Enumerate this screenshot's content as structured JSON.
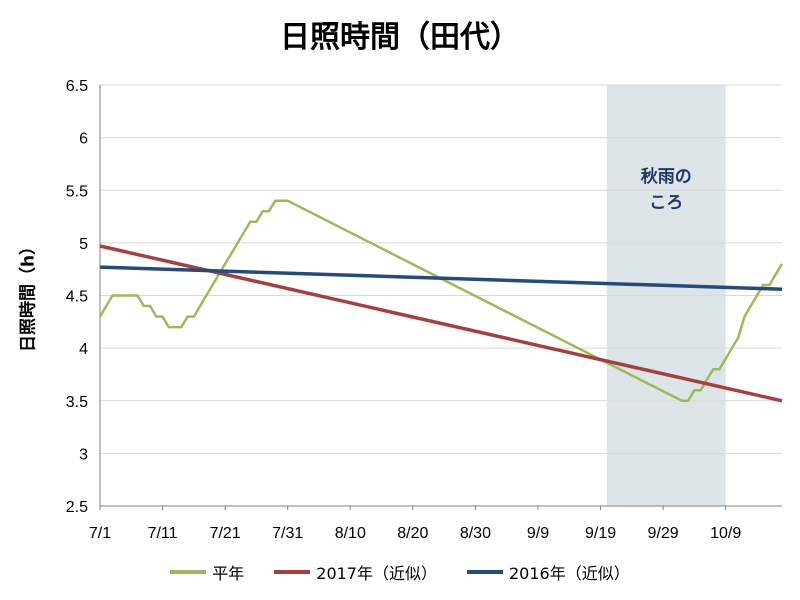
{
  "chart_data": {
    "type": "line",
    "title": "日照時間（田代）",
    "ylabel": "日照時間（h）",
    "xlabel": "",
    "x_start": "7/1",
    "x_end": "10/18",
    "ylim": [
      2.5,
      6.5
    ],
    "yticks": [
      "2.5",
      "3",
      "3.5",
      "4",
      "4.5",
      "5",
      "5.5",
      "6",
      "6.5"
    ],
    "xticks": [
      "7/1",
      "7/11",
      "7/21",
      "7/31",
      "8/10",
      "8/20",
      "8/30",
      "9/9",
      "9/19",
      "9/29",
      "10/9"
    ],
    "grid": "horizontal",
    "legend_position": "bottom",
    "annotation": {
      "label_lines": [
        "秋雨の",
        "ころ"
      ],
      "x_from": "9/20",
      "x_to": "10/9",
      "color": "#dde5e8"
    },
    "series": [
      {
        "name": "平年",
        "color": "#9BBB59",
        "points": [
          [
            "7/1",
            4.3
          ],
          [
            "7/2",
            4.4
          ],
          [
            "7/3",
            4.5
          ],
          [
            "7/4",
            4.5
          ],
          [
            "7/5",
            4.5
          ],
          [
            "7/6",
            4.5
          ],
          [
            "7/7",
            4.5
          ],
          [
            "7/8",
            4.4
          ],
          [
            "7/9",
            4.4
          ],
          [
            "7/10",
            4.3
          ],
          [
            "7/11",
            4.3
          ],
          [
            "7/12",
            4.2
          ],
          [
            "7/13",
            4.2
          ],
          [
            "7/14",
            4.2
          ],
          [
            "7/15",
            4.3
          ],
          [
            "7/16",
            4.3
          ],
          [
            "7/17",
            4.4
          ],
          [
            "7/18",
            4.5
          ],
          [
            "7/19",
            4.6
          ],
          [
            "7/20",
            4.7
          ],
          [
            "7/21",
            4.8
          ],
          [
            "7/22",
            4.9
          ],
          [
            "7/23",
            5.0
          ],
          [
            "7/24",
            5.1
          ],
          [
            "7/25",
            5.2
          ],
          [
            "7/26",
            5.2
          ],
          [
            "7/27",
            5.3
          ],
          [
            "7/28",
            5.3
          ],
          [
            "7/29",
            5.4
          ],
          [
            "7/30",
            5.4
          ],
          [
            "7/31",
            5.4
          ],
          [
            "10/2",
            3.5
          ],
          [
            "10/3",
            3.5
          ],
          [
            "10/4",
            3.6
          ],
          [
            "10/5",
            3.6
          ],
          [
            "10/6",
            3.7
          ],
          [
            "10/7",
            3.8
          ],
          [
            "10/8",
            3.8
          ],
          [
            "10/9",
            3.9
          ],
          [
            "10/10",
            4.0
          ],
          [
            "10/11",
            4.1
          ],
          [
            "10/12",
            4.3
          ],
          [
            "10/13",
            4.4
          ],
          [
            "10/14",
            4.5
          ],
          [
            "10/15",
            4.6
          ],
          [
            "10/16",
            4.6
          ],
          [
            "10/17",
            4.7
          ],
          [
            "10/18",
            4.8
          ]
        ]
      },
      {
        "name": "2017年（近似）",
        "color": "#A5403E",
        "points": [
          [
            "7/1",
            4.97
          ],
          [
            "10/18",
            3.5
          ]
        ]
      },
      {
        "name": "2016年（近似）",
        "color": "#244A7E",
        "points": [
          [
            "7/1",
            4.77
          ],
          [
            "10/18",
            4.56
          ]
        ]
      }
    ]
  }
}
